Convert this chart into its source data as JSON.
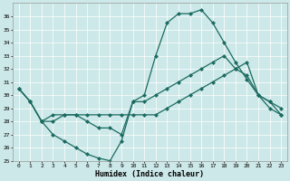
{
  "xlabel": "Humidex (Indice chaleur)",
  "xlim": [
    -0.5,
    23.5
  ],
  "ylim": [
    25,
    37
  ],
  "yticks": [
    25,
    26,
    27,
    28,
    29,
    30,
    31,
    32,
    33,
    34,
    35,
    36
  ],
  "xticks": [
    0,
    1,
    2,
    3,
    4,
    5,
    6,
    7,
    8,
    9,
    10,
    11,
    12,
    13,
    14,
    15,
    16,
    17,
    18,
    19,
    20,
    21,
    22,
    23
  ],
  "bg_color": "#cde8e8",
  "line_color": "#1a6b60",
  "line1_x": [
    0,
    1,
    2,
    3,
    4,
    5,
    6,
    7,
    8,
    9,
    10,
    11,
    12,
    13,
    14,
    15,
    16,
    17,
    18,
    19,
    20,
    21,
    22,
    23
  ],
  "line1_y": [
    30.5,
    29.5,
    28.0,
    27.0,
    26.5,
    26.0,
    25.5,
    25.2,
    25.0,
    26.5,
    29.5,
    30.0,
    33.0,
    35.5,
    36.2,
    36.2,
    36.5,
    35.5,
    34.0,
    32.5,
    31.2,
    30.0,
    29.5,
    29.0
  ],
  "line2_x": [
    0,
    1,
    2,
    3,
    4,
    5,
    6,
    7,
    8,
    9,
    10,
    11,
    12,
    13,
    14,
    15,
    16,
    17,
    18,
    19,
    20,
    21,
    22,
    23
  ],
  "line2_y": [
    30.5,
    29.5,
    28.0,
    28.5,
    28.5,
    28.5,
    28.5,
    28.5,
    28.5,
    28.5,
    28.5,
    28.5,
    28.5,
    29.0,
    29.5,
    30.0,
    30.5,
    31.0,
    31.5,
    32.0,
    32.5,
    30.0,
    29.5,
    28.5
  ],
  "line3_x": [
    0,
    1,
    2,
    3,
    4,
    5,
    6,
    7,
    8,
    9,
    10,
    11,
    12,
    13,
    14,
    15,
    16,
    17,
    18,
    19,
    20,
    21,
    22,
    23
  ],
  "line3_y": [
    30.5,
    29.5,
    28.0,
    28.0,
    28.5,
    28.5,
    28.0,
    27.5,
    27.5,
    27.0,
    29.5,
    29.5,
    30.0,
    30.5,
    31.0,
    31.5,
    32.0,
    32.5,
    33.0,
    32.0,
    31.5,
    30.0,
    29.0,
    28.5
  ]
}
